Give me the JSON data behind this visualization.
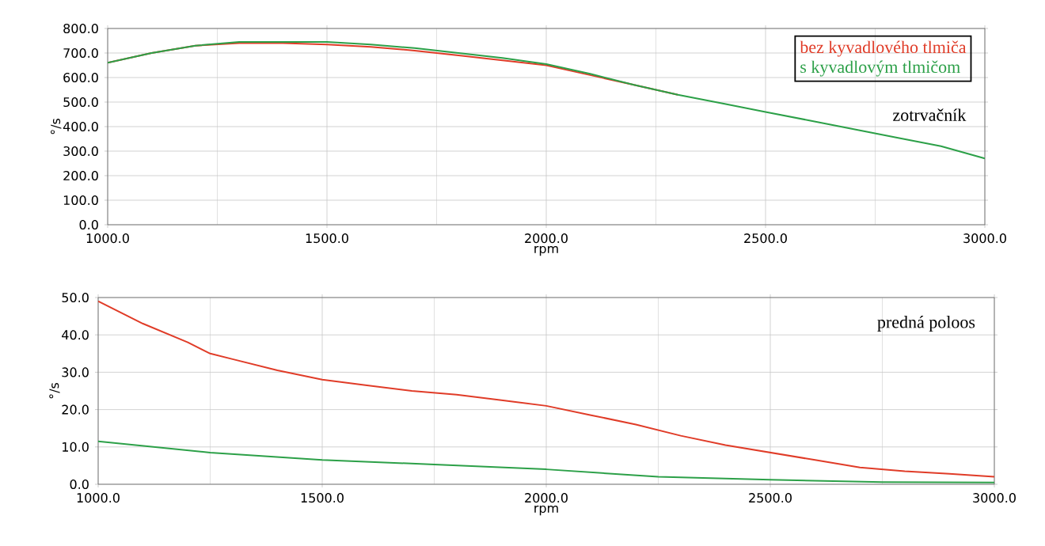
{
  "chart_data": [
    {
      "type": "line",
      "xlabel": "rpm",
      "ylabel": "°/s",
      "annotations": [
        "zotrvačník"
      ],
      "xlim": [
        1000,
        3000
      ],
      "ylim": [
        0,
        800
      ],
      "xticks": [
        {
          "value": 1000,
          "label": "1000.0"
        },
        {
          "value": 1500,
          "label": "1500.0"
        },
        {
          "value": 2000,
          "label": "2000.0"
        },
        {
          "value": 2500,
          "label": "2500.0"
        },
        {
          "value": 3000,
          "label": "3000.0"
        }
      ],
      "yticks": [
        {
          "value": 0,
          "label": "0.0"
        },
        {
          "value": 100,
          "label": "100.0"
        },
        {
          "value": 200,
          "label": "200.0"
        },
        {
          "value": 300,
          "label": "300.0"
        },
        {
          "value": 400,
          "label": "400.0"
        },
        {
          "value": 500,
          "label": "500.0"
        },
        {
          "value": 600,
          "label": "600.0"
        },
        {
          "value": 700,
          "label": "700.0"
        },
        {
          "value": 800,
          "label": "800.0"
        }
      ],
      "grid": true,
      "marker": "none",
      "line_style": "solid",
      "x": [
        1000,
        1100,
        1200,
        1300,
        1400,
        1500,
        1600,
        1700,
        1800,
        1900,
        2000,
        2100,
        2200,
        2300,
        2400,
        2500,
        2600,
        2700,
        2800,
        2900,
        3000
      ],
      "series": [
        {
          "name": "bez kyvadlového tlmiča",
          "color": "#e03c28",
          "values": [
            660,
            700,
            730,
            740,
            740,
            735,
            725,
            710,
            690,
            670,
            650,
            610,
            570,
            530,
            null,
            null,
            null,
            null,
            null,
            null,
            null
          ]
        },
        {
          "name": "s kyvadlovým tlmičom",
          "color": "#2ca048",
          "values": [
            660,
            700,
            730,
            745,
            745,
            745,
            735,
            720,
            700,
            680,
            655,
            615,
            570,
            530,
            495,
            460,
            425,
            390,
            355,
            320,
            270
          ]
        }
      ]
    },
    {
      "type": "line",
      "xlabel": "rpm",
      "ylabel": "°/s",
      "annotations": [
        "predná poloos"
      ],
      "xlim": [
        1000,
        3000
      ],
      "ylim": [
        0,
        50
      ],
      "xticks": [
        {
          "value": 1000,
          "label": "1000.0"
        },
        {
          "value": 1500,
          "label": "1500.0"
        },
        {
          "value": 2000,
          "label": "2000.0"
        },
        {
          "value": 2500,
          "label": "2500.0"
        },
        {
          "value": 3000,
          "label": "3000.0"
        }
      ],
      "yticks": [
        {
          "value": 0,
          "label": "0.0"
        },
        {
          "value": 10,
          "label": "10.0"
        },
        {
          "value": 20,
          "label": "20.0"
        },
        {
          "value": 30,
          "label": "30.0"
        },
        {
          "value": 40,
          "label": "40.0"
        },
        {
          "value": 50,
          "label": "50.0"
        }
      ],
      "grid": true,
      "marker": "none",
      "line_style": "solid",
      "series": [
        {
          "color": "#e03c28",
          "x": [
            1000,
            1100,
            1200,
            1250,
            1300,
            1400,
            1500,
            1600,
            1700,
            1800,
            1900,
            2000,
            2100,
            2200,
            2250,
            2300,
            2400,
            2500,
            2600,
            2700,
            2800,
            2900,
            3000
          ],
          "values": [
            49,
            43,
            38,
            35,
            33.5,
            30.5,
            28,
            26.5,
            25,
            24,
            22.5,
            21,
            18.5,
            16,
            14.5,
            13,
            10.5,
            8.5,
            6.5,
            4.5,
            3.5,
            2.8,
            2
          ]
        },
        {
          "color": "#2ca048",
          "x": [
            1000,
            1250,
            1500,
            1750,
            2000,
            2250,
            2500,
            2750,
            3000
          ],
          "values": [
            11.5,
            8.5,
            6.5,
            5.3,
            4,
            2,
            1.2,
            0.6,
            0.5
          ]
        }
      ]
    }
  ]
}
